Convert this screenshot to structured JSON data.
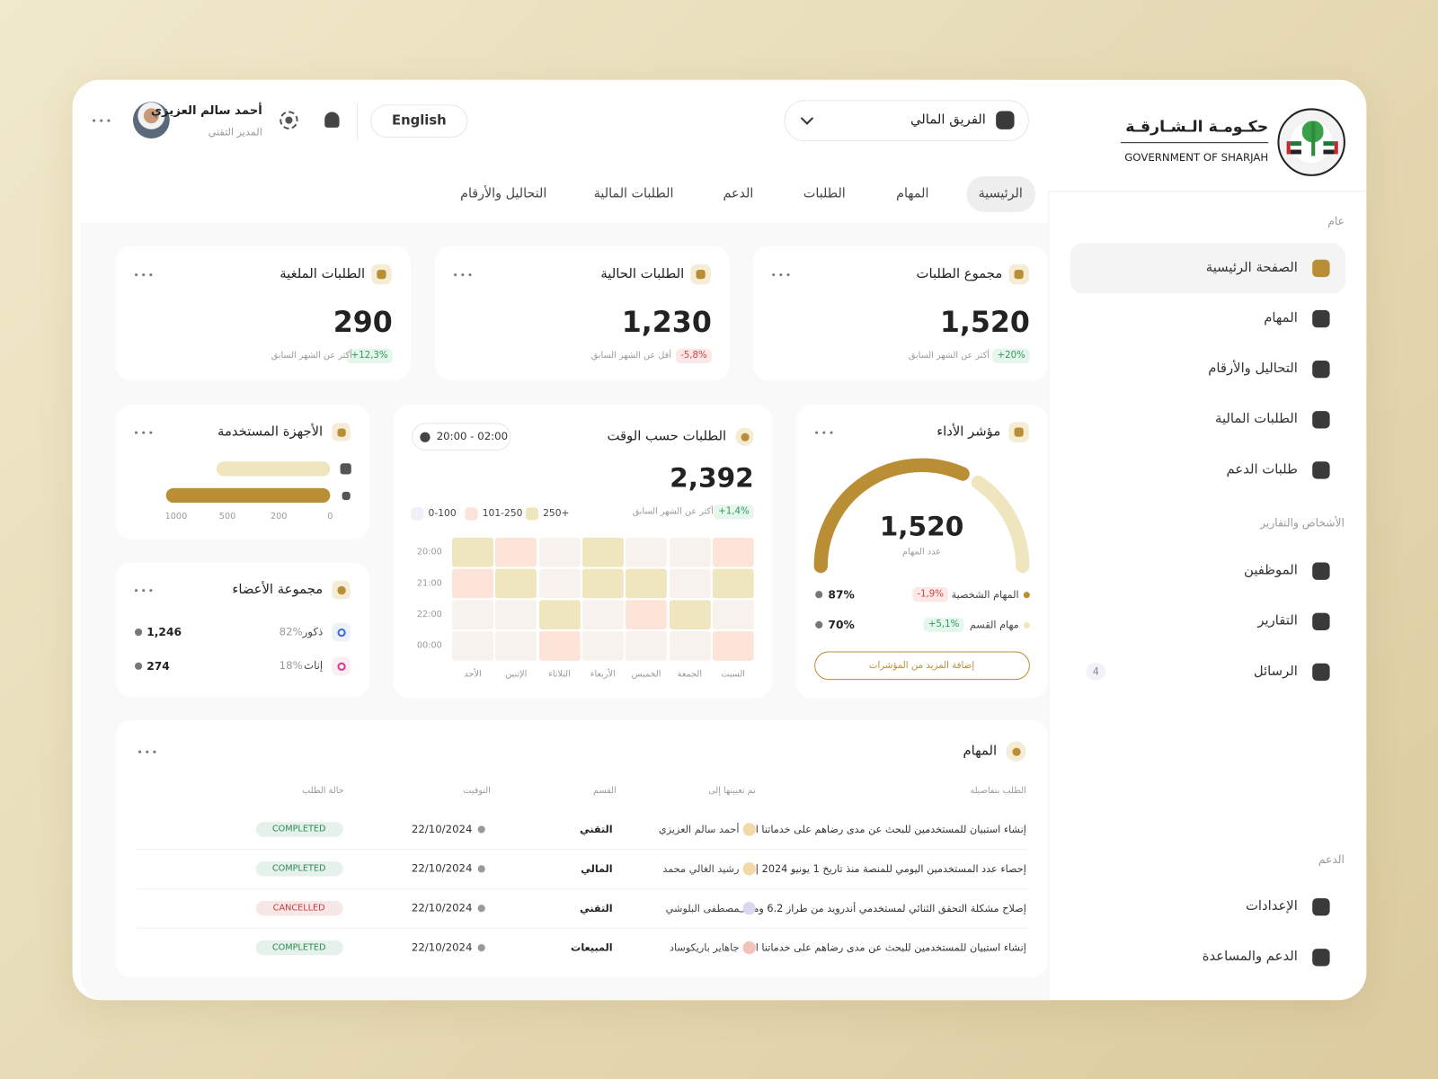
{
  "brand": {
    "arabic": "حكـومـة الـشـارقـة",
    "english": "GOVERNMENT OF SHARJAH"
  },
  "sidebar": {
    "general": {
      "label": "عام",
      "items": [
        {
          "label": "الصفحة الرئيسية"
        },
        {
          "label": "المهام"
        },
        {
          "label": "التحاليل والأرقام"
        },
        {
          "label": "الطلبات المالية"
        },
        {
          "label": "طلبات الدعم"
        }
      ]
    },
    "people": {
      "label": "الأشخاص والتقارير",
      "items": [
        {
          "label": "الموظفين"
        },
        {
          "label": "التقارير"
        },
        {
          "label": "الرسائل",
          "badge": 4
        }
      ]
    },
    "support": {
      "label": "الدعم",
      "items": [
        {
          "label": "الإعدادات"
        },
        {
          "label": "الدعم والمساعدة"
        }
      ]
    }
  },
  "topbar": {
    "team": "الفريق المالي",
    "language": "English",
    "user_name": "أحمد سالم العزيزي",
    "user_role": "المدير التقني"
  },
  "tabs": [
    "الرئيسية",
    "المهام",
    "الطلبات",
    "الدعم",
    "الطلبات المالية",
    "التحاليل والأرقام"
  ],
  "stats": [
    {
      "title": "مجموع الطلبات",
      "value": "1,520",
      "change": "+20%",
      "note": "أكثر عن الشهر السابق"
    },
    {
      "title": "الطلبات الحالية",
      "value": "1,230",
      "change": "-5,8%",
      "note": "أقل عن الشهر السابق"
    },
    {
      "title": "الطلبات الملغية",
      "value": "290",
      "change": "+12,3%",
      "note": "أكثر عن الشهر السابق"
    }
  ],
  "performance": {
    "title": "مؤشر الأداء",
    "value": "1,520",
    "label": "عدد المهام",
    "rows": [
      {
        "label": "المهام الشخصية",
        "change": "-1,9%",
        "percent": "87%",
        "color": "#b98e35"
      },
      {
        "label": "مهام القسم",
        "change": "+5,1%",
        "percent": "70%",
        "color": "#efe6c0"
      }
    ],
    "button": "إضافة المزيد من المؤشرات"
  },
  "heatmap": {
    "title": "الطلبات حسب الوقت",
    "range": "20:00 - 02:00",
    "total": "2,392",
    "change": "+1,4%",
    "note": "أكثر عن الشهر السابق",
    "legend": [
      {
        "label": "0-100",
        "color": "#f8f2ee"
      },
      {
        "label": "101-250",
        "color": "#fce4d8"
      },
      {
        "label": "250+",
        "color": "#efe6c0"
      }
    ],
    "rows": [
      "20:00",
      "21:00",
      "22:00",
      "00:00"
    ],
    "days": [
      "السبت",
      "الجمعة",
      "الخميس",
      "الأربعاء",
      "الثلاثاء",
      "الإثنين",
      "الأحد"
    ],
    "cells": [
      [
        1,
        0,
        0,
        2,
        0,
        1,
        2
      ],
      [
        2,
        0,
        2,
        2,
        0,
        2,
        1
      ],
      [
        0,
        2,
        1,
        0,
        2,
        0,
        0
      ],
      [
        1,
        0,
        0,
        0,
        1,
        0,
        0
      ]
    ]
  },
  "devices": {
    "title": "الأجهزة المستخدمة",
    "ticks": [
      1000,
      500,
      200,
      0
    ],
    "values": [
      610,
      1100
    ],
    "colors": [
      "#efe6c0",
      "#b98e35"
    ]
  },
  "members": {
    "title": "مجموعة الأعضاء",
    "rows": [
      {
        "label": "ذكور",
        "percent": "82%",
        "count": "1,246",
        "color": "#3b6fd8"
      },
      {
        "label": "إناث",
        "percent": "18%",
        "count": "274",
        "color": "#d83b8a"
      }
    ]
  },
  "tasks": {
    "title": "المهام",
    "columns": [
      "الطلب بتفاصيله",
      "تم تعيينها إلى",
      "القسم",
      "التوقيت",
      "حالة الطلب"
    ],
    "rows": [
      {
        "task": "إنشاء استبيان للمستخدمين للبحث عن مدى رضاهم على خدماتنا ا...",
        "assignee": "أحمد سالم العزيزي",
        "department": "التقني",
        "time": "22/10/2024",
        "status": "COMPLETED",
        "status_color": "#2a8a52"
      },
      {
        "task": "إحصاء عدد المستخدمين اليومي للمنصة منذ تاريخ 1 يونيو 2024 |...",
        "assignee": "رشيد الغالي محمد",
        "department": "المالي",
        "time": "22/10/2024",
        "status": "COMPLETED",
        "status_color": "#2a8a52"
      },
      {
        "task": "إصلاح مشكلة التحقق الثنائي لمستخدمي أندرويد من طراز 6.2 وما ف...",
        "assignee": "مصطفى البلوشي",
        "department": "التقني",
        "time": "22/10/2024",
        "status": "CANCELLED",
        "status_color": "#c93c3c"
      },
      {
        "task": "إنشاء استبيان للمستخدمين للبحث عن مدى رضاهم على خدماتنا ا...",
        "assignee": "جاهاير باريكوساد",
        "department": "المبيعات",
        "time": "22/10/2024",
        "status": "COMPLETED",
        "status_color": "#2a8a52"
      }
    ]
  }
}
